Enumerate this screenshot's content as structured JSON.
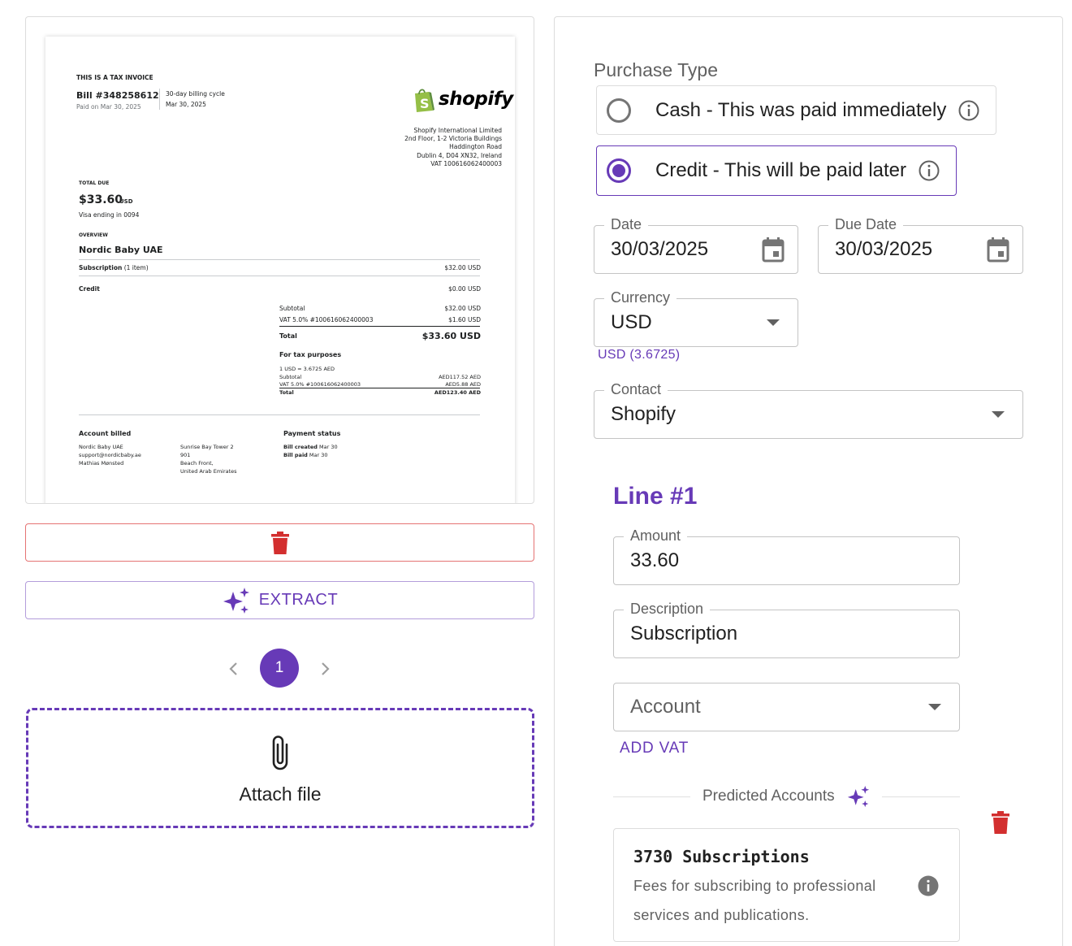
{
  "invoice": {
    "tax_invoice_heading": "THIS IS A TAX INVOICE",
    "bill_number": "Bill #348258612",
    "paid_on": "Paid on Mar 30, 2025",
    "billing_cycle": "30-day billing cycle",
    "cycle_date": "Mar 30, 2025",
    "logo_text": "shopify",
    "seller_address": [
      "Shopify International Limited",
      "2nd Floor, 1-2 Victoria Buildings",
      "Haddington Road",
      "Dublin 4, D04 XN32, Ireland",
      "VAT 100616062400003"
    ],
    "total_due_label": "TOTAL DUE",
    "total_due_amount": "$33.60",
    "total_due_currency": "USD",
    "payment_method": "Visa ending in 0094",
    "overview_label": "OVERVIEW",
    "customer_name": "Nordic Baby UAE",
    "subscription_label": "Subscription",
    "subscription_count": " (1 item)",
    "subscription_amount": "$32.00 USD",
    "credit_label": "Credit",
    "credit_amount": "$0.00 USD",
    "subtotal_label": "Subtotal",
    "subtotal_amount": "$32.00 USD",
    "vat_label": "VAT 5.0% #100616062400003",
    "vat_amount": "$1.60 USD",
    "total_label": "Total",
    "total_amount": "$33.60 USD",
    "tax_purposes_label": "For tax purposes",
    "fx_rate": "1 USD = 3.6725 AED",
    "aed_subtotal_label": "Subtotal",
    "aed_subtotal": "AED117.52 AED",
    "aed_vat_label": "VAT 5.0% #100616062400003",
    "aed_vat": "AED5.88 AED",
    "aed_total_label": "Total",
    "aed_total": "AED123.40 AED",
    "account_billed_label": "Account billed",
    "billed_lines": [
      "Nordic Baby UAE",
      "support@nordicbaby.ae",
      "Mathias Mønsted"
    ],
    "billed_address": [
      "Sunrise Bay Tower 2",
      "901",
      "Beach Front,",
      "United Arab Emirates"
    ],
    "payment_status_label": "Payment status",
    "bill_created_label": "Bill created",
    "bill_created_date": " Mar 30",
    "bill_paid_label": "Bill paid",
    "bill_paid_date": " Mar 30"
  },
  "actions": {
    "extract_label": "EXTRACT"
  },
  "pagination": {
    "current_page": "1"
  },
  "attach": {
    "label": "Attach file"
  },
  "form": {
    "purchase_type_label": "Purchase Type",
    "options": [
      {
        "label": "Cash - This was paid immediately",
        "selected": false
      },
      {
        "label": "Credit - This will be paid later",
        "selected": true
      }
    ],
    "date": {
      "label": "Date",
      "value": "30/03/2025"
    },
    "due_date": {
      "label": "Due Date",
      "value": "30/03/2025"
    },
    "currency": {
      "label": "Currency",
      "value": "USD",
      "helper": "USD (3.6725)"
    },
    "contact": {
      "label": "Contact",
      "value": "Shopify"
    },
    "line": {
      "title": "Line #1",
      "amount": {
        "label": "Amount",
        "value": "33.60"
      },
      "description": {
        "label": "Description",
        "value": "Subscription"
      },
      "account": {
        "placeholder": "Account"
      },
      "add_vat_label": "ADD VAT",
      "predicted_label": "Predicted Accounts",
      "predicted_account": {
        "name": "3730 Subscriptions",
        "description": "Fees for subscribing to professional services and publications."
      }
    }
  },
  "colors": {
    "accent": "#673ab7",
    "danger": "#d32f2f",
    "shopify_green": "#95bf47"
  }
}
